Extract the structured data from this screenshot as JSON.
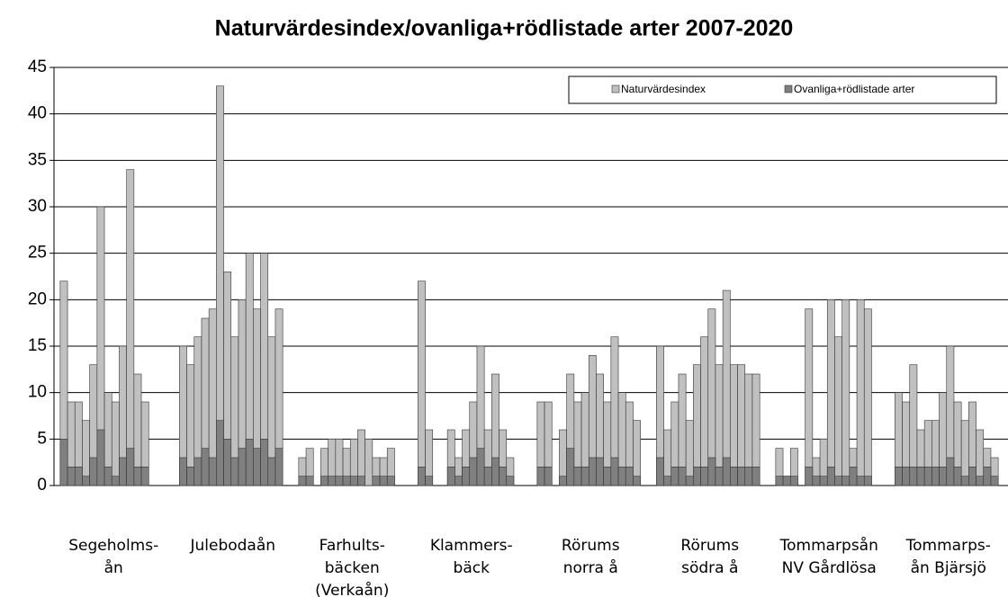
{
  "chart_data": {
    "type": "bar",
    "title": "Naturvärdesindex/ovanliga+rödlistade arter 2007-2020",
    "categories": [
      [
        "Segeholms-",
        "ån"
      ],
      [
        "Julebodaån"
      ],
      [
        "Farhults-",
        "bäcken",
        "(Verkaån)"
      ],
      [
        "Klammers-",
        "bäck"
      ],
      [
        "Rörums",
        "norra å"
      ],
      [
        "Rörums",
        "södra å"
      ],
      [
        "Tommarpsån",
        "NV Gårdlösa"
      ],
      [
        "Tommarps-",
        "ån Bjärsjö"
      ]
    ],
    "series": [
      {
        "name": "Naturvärdesindex",
        "color": "#c0c0c0",
        "values": [
          [
            22,
            9,
            9,
            7,
            13,
            30,
            10,
            9,
            15,
            34,
            12,
            9
          ],
          [
            15,
            13,
            16,
            18,
            19,
            43,
            23,
            16,
            20,
            25,
            19,
            25,
            16,
            19
          ],
          [
            3,
            4,
            null,
            4,
            5,
            5,
            4,
            5,
            6,
            5,
            3,
            3,
            4
          ],
          [
            22,
            6,
            null,
            null,
            6,
            3,
            6,
            9,
            15,
            6,
            12,
            6,
            3
          ],
          [
            9,
            9,
            null,
            6,
            12,
            9,
            10,
            14,
            12,
            9,
            16,
            10,
            9,
            7
          ],
          [
            15,
            6,
            9,
            12,
            7,
            13,
            16,
            19,
            13,
            21,
            13,
            13,
            12,
            12
          ],
          [
            4,
            1,
            4,
            null,
            19,
            3,
            5,
            20,
            16,
            20,
            4,
            20,
            19
          ],
          [
            10,
            9,
            13,
            6,
            7,
            7,
            10,
            15,
            9,
            7,
            9,
            6,
            4,
            3
          ]
        ]
      },
      {
        "name": "Ovanliga+rödlistade arter",
        "color": "#808080",
        "values": [
          [
            5,
            2,
            2,
            1,
            3,
            6,
            2,
            1,
            3,
            4,
            2,
            2
          ],
          [
            3,
            2,
            3,
            4,
            3,
            7,
            5,
            3,
            4,
            5,
            4,
            5,
            3,
            4
          ],
          [
            1,
            1,
            null,
            1,
            1,
            1,
            1,
            1,
            1,
            0,
            1,
            1,
            1
          ],
          [
            2,
            1,
            null,
            null,
            2,
            1,
            2,
            3,
            4,
            2,
            3,
            2,
            1
          ],
          [
            2,
            2,
            null,
            1,
            4,
            2,
            2,
            3,
            3,
            2,
            3,
            2,
            2,
            1
          ],
          [
            3,
            1,
            2,
            2,
            1,
            2,
            2,
            3,
            2,
            3,
            2,
            2,
            2,
            2
          ],
          [
            1,
            1,
            1,
            null,
            2,
            1,
            1,
            2,
            1,
            1,
            2,
            1,
            1
          ],
          [
            2,
            2,
            2,
            2,
            2,
            2,
            2,
            3,
            2,
            1,
            2,
            1,
            2,
            1
          ]
        ]
      }
    ],
    "ylim": [
      0,
      45
    ],
    "yticks": [
      0,
      5,
      10,
      15,
      20,
      25,
      30,
      35,
      40,
      45
    ],
    "grid": true,
    "legend": "top-right"
  }
}
